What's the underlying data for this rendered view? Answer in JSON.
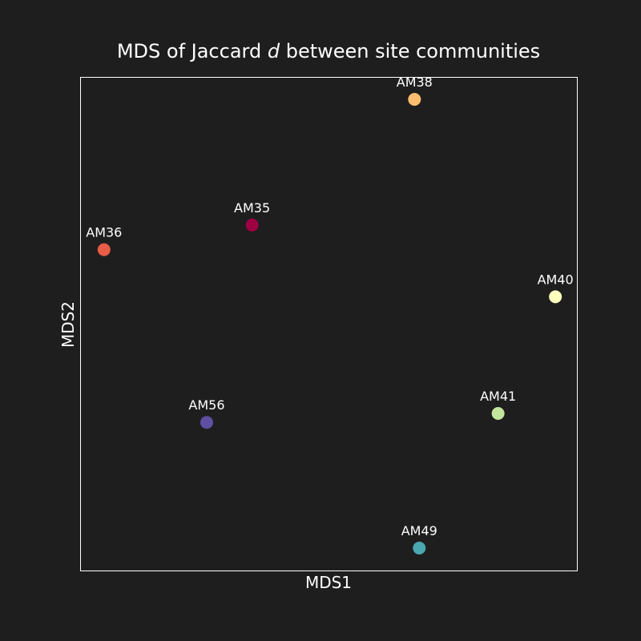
{
  "chart_data": {
    "type": "scatter",
    "title_prefix": "MDS of Jaccard ",
    "title_italic": "d",
    "title_suffix": " between site communities",
    "xlabel": "MDS1",
    "ylabel": "MDS2",
    "xlim": [
      -0.52,
      0.52
    ],
    "ylim": [
      -0.55,
      0.55
    ],
    "grid": false,
    "legend": "none",
    "points": [
      {
        "label": "AM38",
        "x": 0.18,
        "y": 0.5,
        "color": "#fdbf6f"
      },
      {
        "label": "AM35",
        "x": -0.16,
        "y": 0.22,
        "color": "#9e0142"
      },
      {
        "label": "AM36",
        "x": -0.47,
        "y": 0.165,
        "color": "#e95c47"
      },
      {
        "label": "AM40",
        "x": 0.475,
        "y": 0.06,
        "color": "#ffffbf"
      },
      {
        "label": "AM41",
        "x": 0.355,
        "y": -0.2,
        "color": "#c1e59d"
      },
      {
        "label": "AM56",
        "x": -0.255,
        "y": -0.22,
        "color": "#5e4fa2"
      },
      {
        "label": "AM49",
        "x": 0.19,
        "y": -0.5,
        "color": "#4aa8b0"
      }
    ]
  }
}
